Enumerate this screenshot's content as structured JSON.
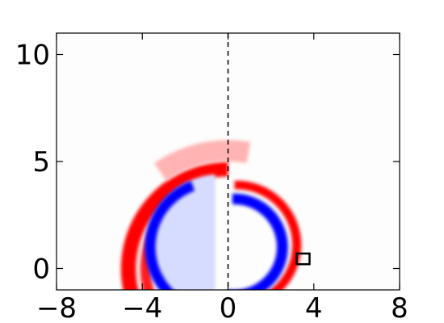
{
  "chart_data": {
    "type": "heatmap",
    "title": "",
    "xlabel": "",
    "ylabel": "",
    "xlim": [
      -8,
      8
    ],
    "ylim": [
      -1,
      11
    ],
    "x_ticks": [
      -8,
      -4,
      0,
      4,
      8
    ],
    "y_ticks": [
      0,
      5,
      10
    ],
    "x_tick_labels": [
      "−8",
      "−4",
      "0",
      "4",
      "8"
    ],
    "y_tick_labels": [
      "0",
      "5",
      "10"
    ],
    "grid": false,
    "colormap": [
      "#0000ff",
      "#ffffff",
      "#ff0000"
    ],
    "background_color": "#fdfdfd",
    "axis_line": {
      "x": 0,
      "style": "dashed",
      "color": "#000000"
    },
    "marker_box": {
      "x": [
        3.2,
        3.8
      ],
      "y": [
        0.2,
        0.7
      ],
      "color": "#000000"
    },
    "shells": [
      {
        "name": "outer-arc-left",
        "sign": "positive",
        "center": [
          0,
          0
        ],
        "r_outer": 5.0,
        "r_inner": 4.3,
        "theta_deg": [
          90,
          200
        ],
        "color": "#ff0000"
      },
      {
        "name": "outer-arc-left-inner",
        "sign": "positive",
        "center": [
          0,
          0
        ],
        "r_outer": 4.1,
        "r_inner": 3.6,
        "theta_deg": [
          110,
          200
        ],
        "color": "#ff1a1a"
      },
      {
        "name": "plume-tail",
        "sign": "positive",
        "center": [
          0,
          0
        ],
        "r_outer": 6.0,
        "r_inner": 5.0,
        "theta_deg": [
          80,
          125
        ],
        "color": "#ffb3b3"
      },
      {
        "name": "right-red-shell",
        "sign": "positive",
        "center": [
          0.3,
          1.1
        ],
        "r_outer": 3.0,
        "r_inner": 2.6,
        "theta_deg": [
          -95,
          90
        ],
        "color": "#ff0000"
      },
      {
        "name": "left-blue-core",
        "sign": "negative",
        "center": [
          -0.6,
          1.0
        ],
        "r_outer": 3.4,
        "r_inner": 0.0,
        "theta_deg": [
          90,
          270
        ],
        "color": "#d6dcff"
      },
      {
        "name": "left-blue-rim",
        "sign": "negative",
        "center": [
          -0.6,
          1.0
        ],
        "r_outer": 3.3,
        "r_inner": 2.8,
        "theta_deg": [
          110,
          250
        ],
        "color": "#0000ff"
      },
      {
        "name": "right-blue-shell",
        "sign": "negative",
        "center": [
          0.2,
          1.0
        ],
        "r_outer": 2.5,
        "r_inner": 2.0,
        "theta_deg": [
          -95,
          90
        ],
        "color": "#0000ff"
      }
    ]
  }
}
